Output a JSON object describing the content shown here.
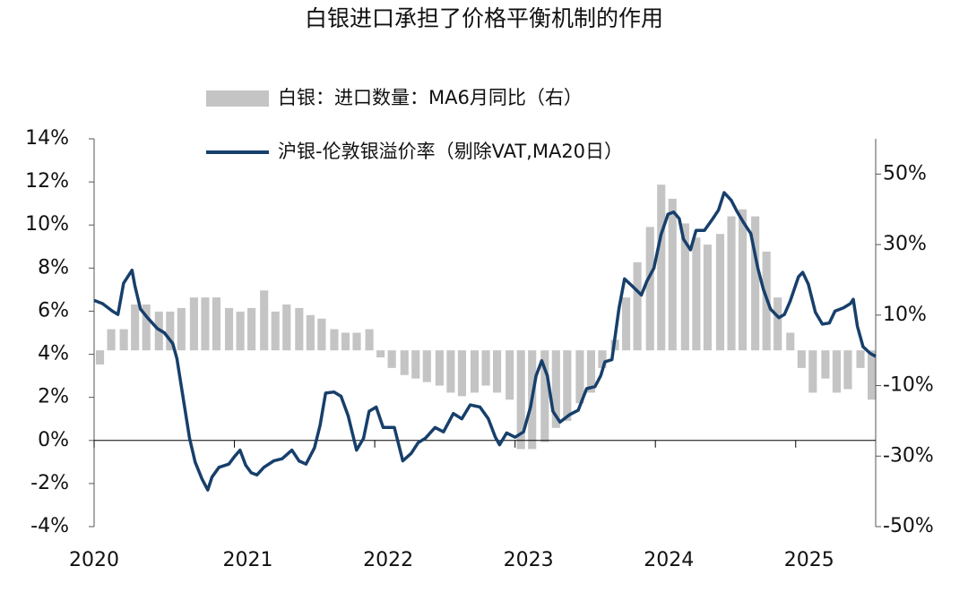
{
  "chart_data": {
    "type": "combo",
    "title": "白银进口承担了价格平衡机制的作用",
    "xlim": [
      2020,
      2025.57
    ],
    "xticks": [
      2020,
      2021,
      2022,
      2023,
      2024,
      2025
    ],
    "ylim": [
      -4,
      14
    ],
    "yticks": [
      {
        "value": -4,
        "label": "-4%"
      },
      {
        "value": -2,
        "label": "-2%"
      },
      {
        "value": 0,
        "label": "0%"
      },
      {
        "value": 2,
        "label": "2%"
      },
      {
        "value": 4,
        "label": "4%"
      },
      {
        "value": 6,
        "label": "6%"
      },
      {
        "value": 8,
        "label": "8%"
      },
      {
        "value": 10,
        "label": "10%"
      },
      {
        "value": 12,
        "label": "12%"
      },
      {
        "value": 14,
        "label": "14%"
      }
    ],
    "y2lim": [
      -50,
      60
    ],
    "y2ticks": [
      {
        "value": -50,
        "label": "-50%"
      },
      {
        "value": -30,
        "label": "-30%"
      },
      {
        "value": -10,
        "label": "-10%"
      },
      {
        "value": 10,
        "label": "10%"
      },
      {
        "value": 30,
        "label": "30%"
      },
      {
        "value": 50,
        "label": "50%"
      }
    ],
    "series": [
      {
        "name": "白银：进口数量：MA6月同比（右）",
        "type": "bar",
        "axis": "y2",
        "color": "#c4c4c4",
        "x": [
          2020,
          2020.08,
          2020.17,
          2020.25,
          2020.33,
          2020.42,
          2020.5,
          2020.58,
          2020.67,
          2020.75,
          2020.83,
          2020.92,
          2021,
          2021.08,
          2021.17,
          2021.25,
          2021.33,
          2021.42,
          2021.5,
          2021.58,
          2021.67,
          2021.75,
          2021.83,
          2021.92,
          2022,
          2022.08,
          2022.17,
          2022.25,
          2022.33,
          2022.42,
          2022.5,
          2022.58,
          2022.67,
          2022.75,
          2022.83,
          2022.92,
          2023,
          2023.08,
          2023.17,
          2023.25,
          2023.33,
          2023.42,
          2023.5,
          2023.58,
          2023.67,
          2023.75,
          2023.83,
          2023.92,
          2024,
          2024.08,
          2024.17,
          2024.25,
          2024.33,
          2024.42,
          2024.5,
          2024.58,
          2024.67,
          2024.75,
          2024.83,
          2024.92,
          2025,
          2025.08,
          2025.17,
          2025.25,
          2025.33,
          2025.42,
          2025.5
        ],
        "values": [
          -4,
          6,
          6,
          13,
          13,
          11,
          11,
          12,
          15,
          15,
          15,
          12,
          11,
          12,
          17,
          11,
          13,
          12,
          10,
          9,
          6,
          5,
          5,
          6,
          -2,
          -5,
          -7,
          -8,
          -9,
          -10,
          -12,
          -13,
          -12,
          -10,
          -12,
          -14,
          -28,
          -28,
          -26,
          -22,
          -20,
          -15,
          -12,
          -5,
          3,
          15,
          25,
          35,
          47,
          43,
          36,
          32,
          30,
          33,
          38,
          40,
          38,
          28,
          15,
          5,
          -5,
          -12,
          -8,
          -12,
          -11,
          -5,
          -14
        ]
      },
      {
        "name": "沪银-伦敦银溢价率（剔除VAT,MA20日）",
        "type": "line",
        "color": "#173f6b",
        "x": [
          2020,
          2020.06,
          2020.13,
          2020.17,
          2020.21,
          2020.27,
          2020.29,
          2020.33,
          2020.38,
          2020.45,
          2020.5,
          2020.56,
          2020.59,
          2020.64,
          2020.68,
          2020.72,
          2020.77,
          2020.81,
          2020.84,
          2020.89,
          2020.96,
          2021,
          2021.04,
          2021.08,
          2021.12,
          2021.16,
          2021.21,
          2021.28,
          2021.34,
          2021.41,
          2021.46,
          2021.51,
          2021.57,
          2021.61,
          2021.65,
          2021.71,
          2021.76,
          2021.81,
          2021.87,
          2021.92,
          2021.96,
          2022.01,
          2022.06,
          2022.14,
          2022.2,
          2022.26,
          2022.31,
          2022.36,
          2022.43,
          2022.49,
          2022.56,
          2022.62,
          2022.68,
          2022.75,
          2022.81,
          2022.86,
          2022.89,
          2022.94,
          2023,
          2023.06,
          2023.11,
          2023.15,
          2023.19,
          2023.23,
          2023.27,
          2023.32,
          2023.39,
          2023.45,
          2023.51,
          2023.57,
          2023.61,
          2023.64,
          2023.69,
          2023.74,
          2023.78,
          2023.83,
          2023.9,
          2023.94,
          2023.99,
          2024.04,
          2024.09,
          2024.13,
          2024.17,
          2024.2,
          2024.25,
          2024.29,
          2024.35,
          2024.41,
          2024.45,
          2024.49,
          2024.54,
          2024.58,
          2024.63,
          2024.68,
          2024.73,
          2024.77,
          2024.82,
          2024.88,
          2024.92,
          2024.96,
          2025.02,
          2025.05,
          2025.09,
          2025.14,
          2025.19,
          2025.24,
          2025.28,
          2025.34,
          2025.39,
          2025.41,
          2025.44,
          2025.48,
          2025.53,
          2025.57
        ],
        "values": [
          6.5,
          6.35,
          6,
          5.85,
          7.3,
          7.9,
          7.2,
          6.1,
          5.7,
          5.2,
          5,
          4.5,
          3.8,
          1.75,
          0.1,
          -1,
          -1.8,
          -2.3,
          -1.7,
          -1.25,
          -1.1,
          -0.75,
          -0.45,
          -1.15,
          -1.5,
          -1.6,
          -1.25,
          -0.95,
          -0.85,
          -0.45,
          -0.95,
          -1.1,
          -0.35,
          0.7,
          2.2,
          2.25,
          2.05,
          1.15,
          -0.45,
          0.1,
          1.35,
          1.55,
          0.6,
          0.6,
          -0.95,
          -0.6,
          -0.1,
          0.1,
          0.6,
          0.4,
          1.25,
          1,
          1.65,
          1.55,
          1,
          0.15,
          -0.2,
          0.35,
          0.15,
          0.4,
          1.55,
          3,
          3.7,
          3,
          1.35,
          0.85,
          1.2,
          1.4,
          2.4,
          2.5,
          3,
          3.65,
          3.75,
          6.1,
          7.5,
          7.2,
          6.75,
          7.4,
          8,
          9.55,
          10.5,
          10.6,
          10.3,
          9.35,
          8.85,
          9.75,
          9.75,
          10.3,
          10.7,
          11.5,
          11.15,
          10.65,
          10.1,
          9.6,
          8,
          7,
          6.1,
          5.7,
          5.85,
          6.45,
          7.6,
          7.8,
          7.25,
          5.95,
          5.4,
          5.45,
          6,
          6.15,
          6.35,
          6.55,
          5.3,
          4.35,
          4.05,
          3.9
        ]
      }
    ]
  }
}
